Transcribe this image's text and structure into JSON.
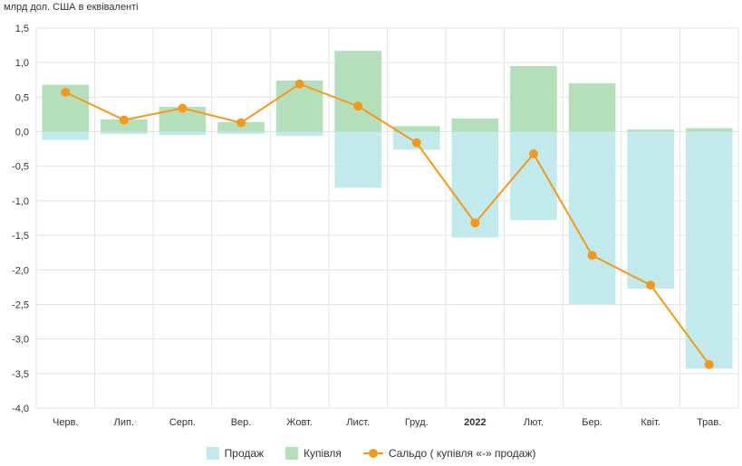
{
  "chart_data": {
    "type": "bar",
    "unit_label": "млрд дол. США в еквіваленті",
    "categories": [
      "Черв.",
      "Лип.",
      "Серп.",
      "Вер.",
      "Жовт.",
      "Лист.",
      "Груд.",
      "2022",
      "Лют.",
      "Бер.",
      "Квіт.",
      "Трав."
    ],
    "bold_categories": [
      "2022"
    ],
    "ylim": [
      -4.0,
      1.5
    ],
    "yticks": [
      1.5,
      1.0,
      0.5,
      0.0,
      -0.5,
      -1.0,
      -1.5,
      -2.0,
      -2.5,
      -3.0,
      -3.5,
      -4.0
    ],
    "ytick_labels": [
      "1,5",
      "1,0",
      "0,5",
      "0,0",
      "-0,5",
      "-1,0",
      "-1,5",
      "-2,0",
      "-2,5",
      "-3,0",
      "-3,5",
      "-4,0"
    ],
    "grid": true,
    "legend_position": "bottom",
    "series": [
      {
        "name": "Продаж",
        "type": "bar",
        "color": "#c2e9eb",
        "values": [
          -0.12,
          -0.03,
          -0.05,
          -0.03,
          -0.06,
          -0.81,
          -0.26,
          -1.53,
          -1.28,
          -2.5,
          -2.27,
          -3.43
        ]
      },
      {
        "name": "Купівля",
        "type": "bar",
        "color": "#b4dfba",
        "values": [
          0.68,
          0.18,
          0.36,
          0.14,
          0.74,
          1.17,
          0.08,
          0.19,
          0.95,
          0.7,
          0.03,
          0.05
        ]
      },
      {
        "name": "Сальдо ( купівля «-» продаж)",
        "type": "line",
        "color": "#f39a1e",
        "values": [
          0.57,
          0.17,
          0.34,
          0.13,
          0.69,
          0.37,
          -0.16,
          -1.32,
          -0.32,
          -1.79,
          -2.22,
          -3.37
        ]
      }
    ]
  }
}
